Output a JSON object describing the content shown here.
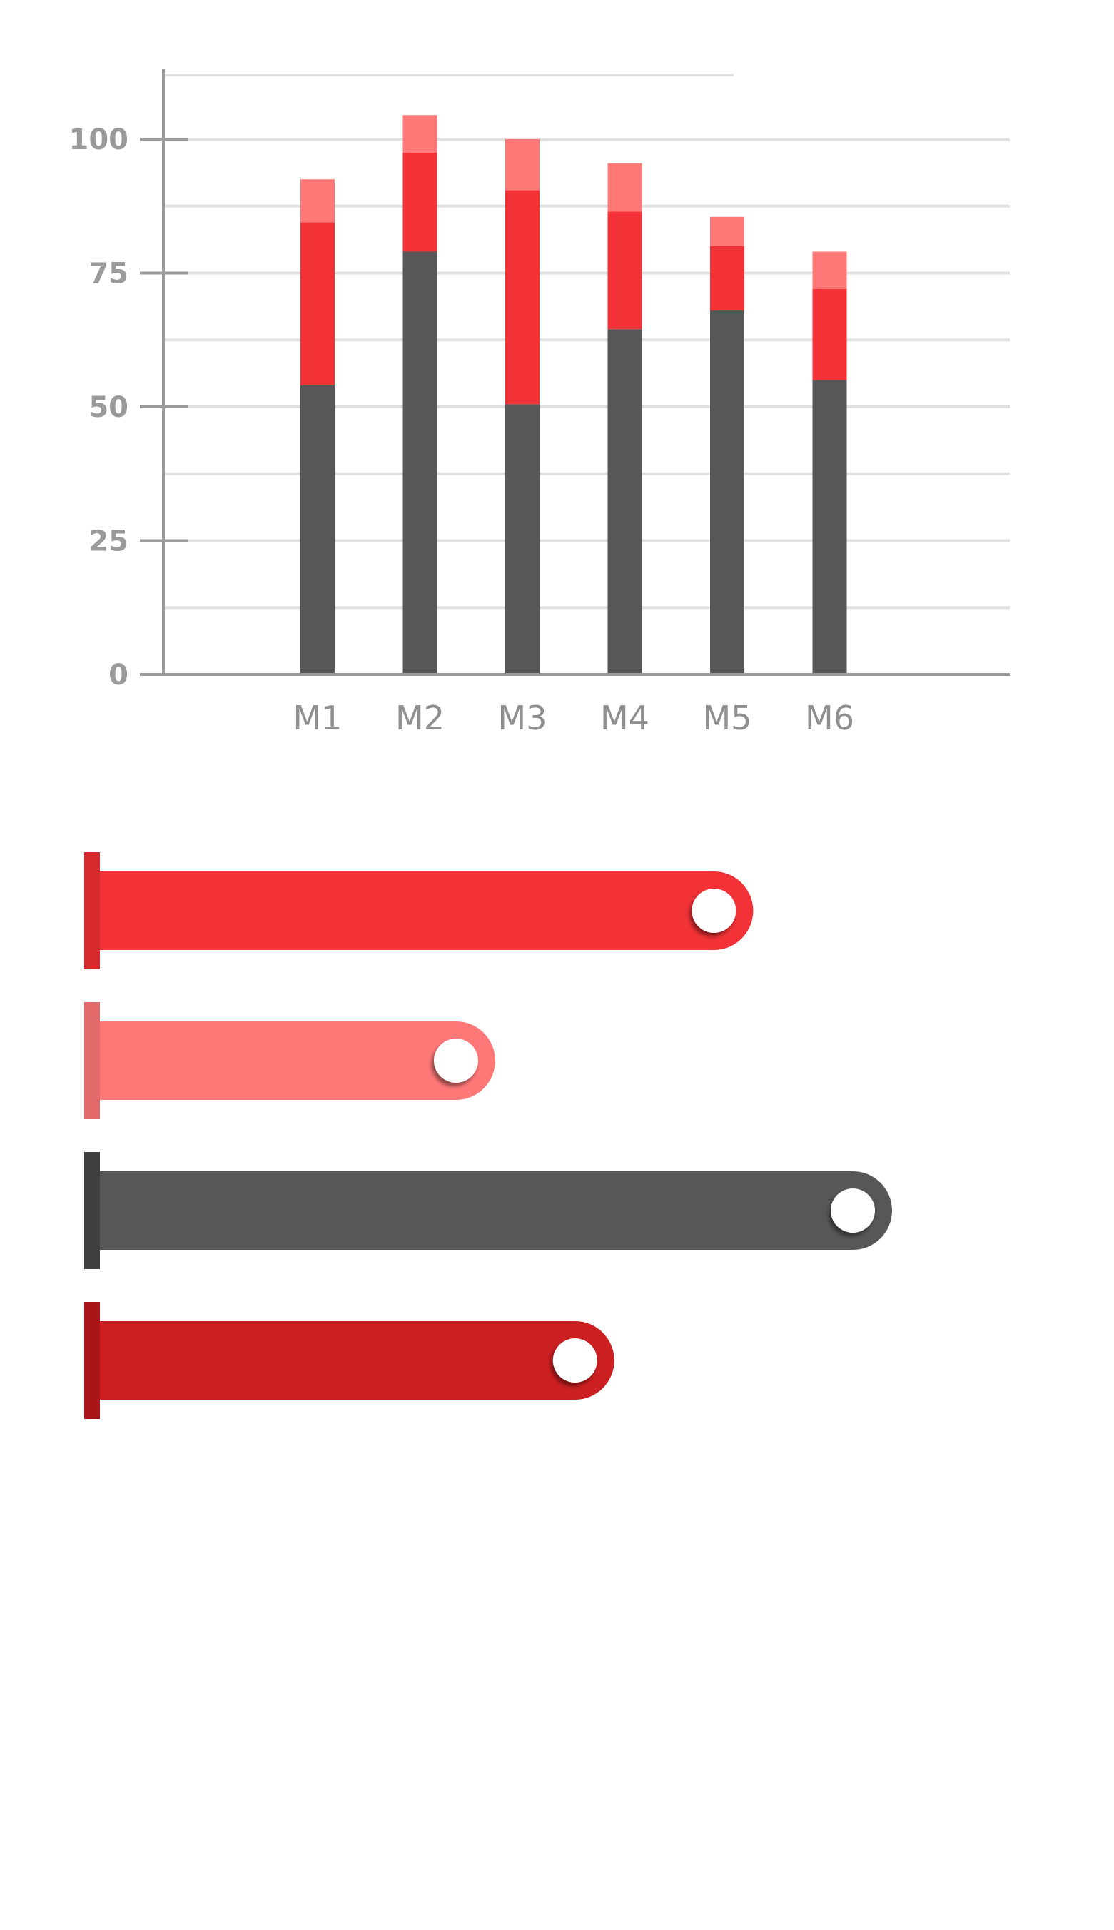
{
  "chart_data": [
    {
      "type": "bar",
      "stacked": true,
      "categories": [
        "M1",
        "M2",
        "M3",
        "M4",
        "M5",
        "M6"
      ],
      "series": [
        {
          "values": [
            54,
            79,
            50.5,
            64.5,
            68,
            55
          ]
        },
        {
          "values": [
            30.5,
            18.5,
            40,
            22,
            12,
            17
          ]
        },
        {
          "values": [
            8,
            7,
            9.5,
            9,
            5.5,
            7
          ]
        }
      ],
      "y_ticks": [
        "0",
        "25",
        "50",
        "75",
        "100"
      ],
      "ylim": [
        0,
        112
      ],
      "grid": true,
      "colors": [
        "#575757",
        "#f23236",
        "#ff7878"
      ]
    },
    {
      "type": "bar",
      "orientation": "horizontal",
      "values": [
        0.66,
        0.4,
        0.8,
        0.52
      ],
      "colors": [
        "#f23236",
        "#ff7878",
        "#575757",
        "#cc1f21"
      ],
      "cap_colors": [
        "#d62a2c",
        "#e36a6a",
        "#404040",
        "#a81618"
      ]
    }
  ]
}
